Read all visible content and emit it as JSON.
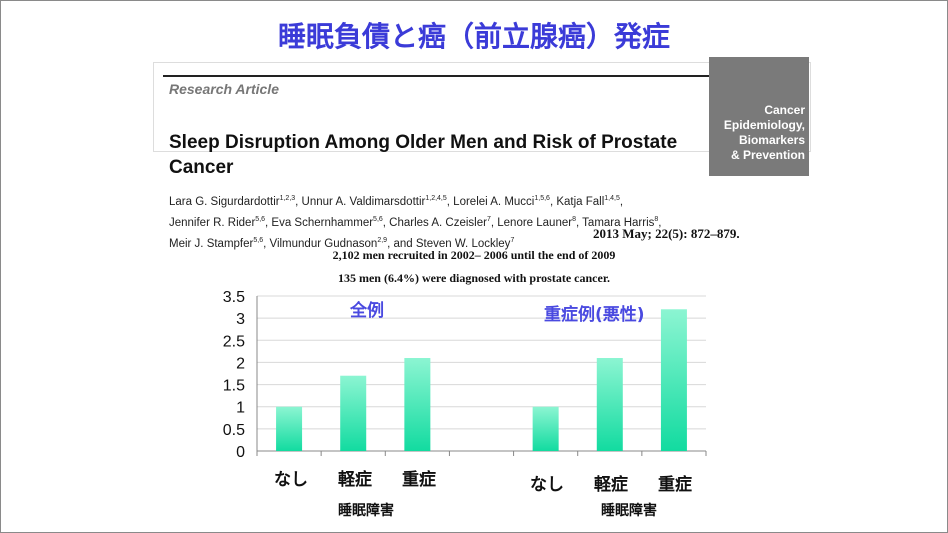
{
  "slide": {
    "title": "睡眠負債と癌（前立腺癌）発症",
    "paper": {
      "label": "Research Article",
      "journal_lines": [
        "Cancer",
        "Epidemiology,",
        "Biomarkers",
        "& Prevention"
      ],
      "title": "Sleep Disruption Among Older Men and Risk of Prostate Cancer",
      "authors_line1": "Lara G. Sigurdardottir<sup>1,2,3</sup>, Unnur A. Valdimarsdottir<sup>1,2,4,5</sup>, Lorelei A. Mucci<sup>1,5,6</sup>, Katja Fall<sup>1,4,5</sup>,",
      "authors_line2": "Jennifer R. Rider<sup>5,6</sup>, Eva Schernhammer<sup>5,6</sup>, Charles A. Czeisler<sup>7</sup>, Lenore Launer<sup>8</sup>, Tamara Harris<sup>8</sup>,",
      "authors_line3": "Meir J. Stampfer<sup>5,6</sup>, Vilmundur Gudnason<sup>2,9</sup>, and Steven W. Lockley<sup>7</sup>",
      "citation": "2013 May; 22(5): 872–879."
    },
    "note1": "2,102 men recruited in 2002– 2006 until the end of 2009",
    "note2": "135 men (6.4%) were diagnosed with prostate cancer."
  },
  "chart_data": {
    "type": "bar",
    "ylim": [
      0,
      3.5
    ],
    "yticks": [
      "0",
      "0.5",
      "1",
      "1.5",
      "2",
      "2.5",
      "3",
      "3.5"
    ],
    "grid": true,
    "groups": [
      {
        "title": "全例",
        "categories": [
          "なし",
          "軽症",
          "重症"
        ],
        "values": [
          1.0,
          1.7,
          2.1
        ],
        "xlabel": "睡眠障害"
      },
      {
        "title": "重症例(悪性)",
        "categories": [
          "なし",
          "軽症",
          "重症"
        ],
        "values": [
          1.0,
          2.1,
          3.2
        ],
        "xlabel": "睡眠障害"
      }
    ],
    "bar_color_top": "#8cf5d2",
    "bar_color_bottom": "#12dba0"
  }
}
